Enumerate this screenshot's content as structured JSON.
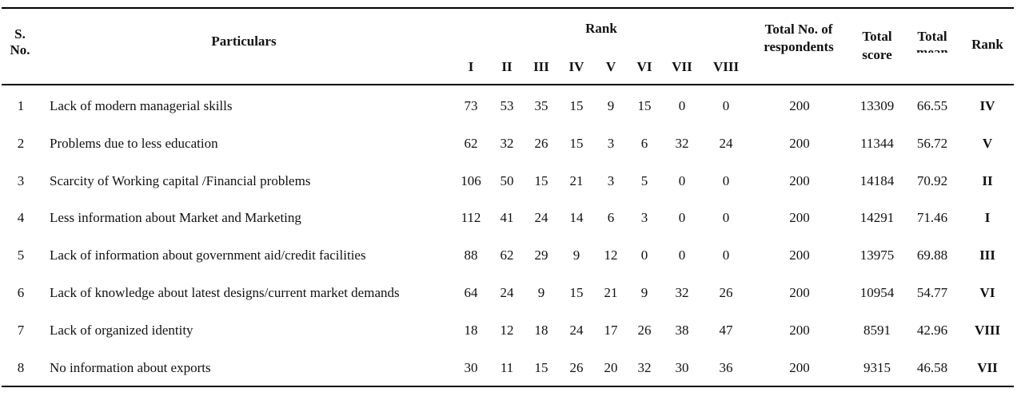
{
  "headers": {
    "sno": "S. No.",
    "particulars": "Particulars",
    "rank_group": "Rank",
    "rank_columns": [
      "I",
      "II",
      "III",
      "IV",
      "V",
      "VI",
      "VII",
      "VIII"
    ],
    "total_respondents": "Total No. of respondents",
    "total_score": "Total score",
    "total_mean": "Total mean",
    "rank": "Rank"
  },
  "rows": [
    {
      "sno": "1",
      "particulars": "Lack of  modern managerial skills",
      "ranks": [
        "73",
        "53",
        "35",
        "15",
        "9",
        "15",
        "0",
        "0"
      ],
      "respondents": "200",
      "score": "13309",
      "mean": "66.55",
      "rank": "IV"
    },
    {
      "sno": "2",
      "particulars": "Problems due to less education",
      "ranks": [
        "62",
        "32",
        "26",
        "15",
        "3",
        "6",
        "32",
        "24"
      ],
      "respondents": "200",
      "score": "11344",
      "mean": "56.72",
      "rank": "V"
    },
    {
      "sno": "3",
      "particulars": "Scarcity of  Working capital /Financial problems",
      "ranks": [
        "106",
        "50",
        "15",
        "21",
        "3",
        "5",
        "0",
        "0"
      ],
      "respondents": "200",
      "score": "14184",
      "mean": "70.92",
      "rank": "II"
    },
    {
      "sno": "4",
      "particulars": "Less information about Market and Marketing",
      "ranks": [
        "112",
        "41",
        "24",
        "14",
        "6",
        "3",
        "0",
        "0"
      ],
      "respondents": "200",
      "score": "14291",
      "mean": "71.46",
      "rank": "I"
    },
    {
      "sno": "5",
      "particulars": "Lack of  information about government aid/credit facilities",
      "ranks": [
        "88",
        "62",
        "29",
        "9",
        "12",
        "0",
        "0",
        "0"
      ],
      "respondents": "200",
      "score": "13975",
      "mean": "69.88",
      "rank": "III"
    },
    {
      "sno": "6",
      "particulars": "Lack of knowledge about latest designs/current market demands",
      "ranks": [
        "64",
        "24",
        "9",
        "15",
        "21",
        "9",
        "32",
        "26"
      ],
      "respondents": "200",
      "score": "10954",
      "mean": "54.77",
      "rank": "VI"
    },
    {
      "sno": "7",
      "particulars": "Lack of  organized identity",
      "ranks": [
        "18",
        "12",
        "18",
        "24",
        "17",
        "26",
        "38",
        "47"
      ],
      "respondents": "200",
      "score": "8591",
      "mean": "42.96",
      "rank": "VIII"
    },
    {
      "sno": "8",
      "particulars": "No information about exports",
      "ranks": [
        "30",
        "11",
        "15",
        "26",
        "20",
        "32",
        "30",
        "36"
      ],
      "respondents": "200",
      "score": "9315",
      "mean": "46.58",
      "rank": "VII"
    }
  ]
}
